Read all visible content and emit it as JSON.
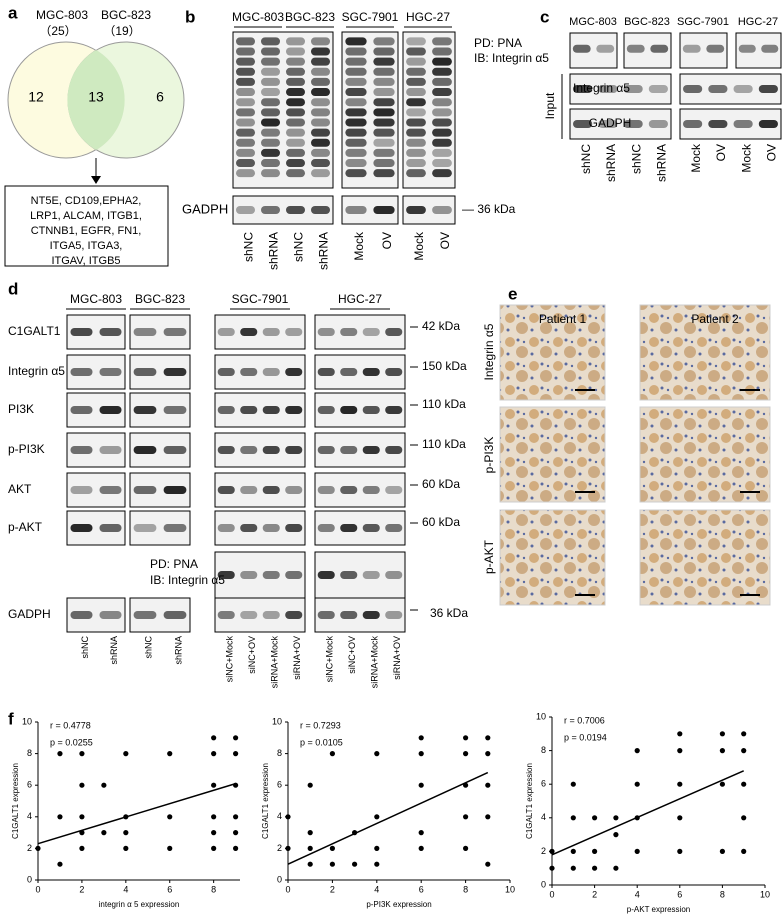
{
  "panel_a": {
    "label": "a",
    "set1": "MGC-803",
    "set1_count": "（25）",
    "set2": "BGC-823",
    "set2_count": "（19）",
    "only1": 12,
    "both": 13,
    "only2": 6,
    "genes": [
      "NT5E, CD109,EPHA2,",
      "LRP1, ALCAM, ITGB1,",
      "CTNNB1, EGFR, FN1,",
      "ITGA5, ITGA3,",
      "ITGAV, ITGB5"
    ]
  },
  "panel_b": {
    "label": "b",
    "groups": [
      "MGC-803",
      "BGC-823",
      "SGC-7901",
      "HGC-27"
    ],
    "loading": "GADPH",
    "marker": "— 36 kDa",
    "lanes": [
      "shNC",
      "shRNA",
      "shNC",
      "shRNA",
      "Mock",
      "OV",
      "Mock",
      "OV"
    ]
  },
  "panel_c": {
    "label": "c",
    "groups": [
      "MGC-803",
      "BGC-823",
      "SGC-7901",
      "HGC-27"
    ],
    "pd": "PD: PNA",
    "ib": "IB: Integrin α5",
    "input": "Input",
    "rows": [
      "Integrin α5",
      "GADPH"
    ],
    "lanes": [
      "shNC",
      "shRNA",
      "shNC",
      "shRNA",
      "Mock",
      "OV",
      "Mock",
      "OV"
    ]
  },
  "panel_d": {
    "label": "d",
    "groups": [
      "MGC-803",
      "BGC-823",
      "SGC-7901",
      "HGC-27"
    ],
    "rows": [
      "C1GALT1",
      "Integrin α5",
      "PI3K",
      "p-PI3K",
      "AKT",
      "p-AKT"
    ],
    "markers": [
      "42 kDa",
      "150 kDa",
      "110 kDa",
      "110 kDa",
      "60 kDa",
      "60 kDa"
    ],
    "pd": "PD: PNA",
    "ib": "IB:  Integrin α5",
    "loading": "GADPH",
    "loading_marker": "36 kDa",
    "lanes": [
      "shNC",
      "shRNA",
      "shNC",
      "shRNA",
      "siNC+Mock",
      "siNC+OV",
      "siRNA+Mock",
      "siRNA+OV",
      "siNC+Mock",
      "siNC+OV",
      "siRNA+Mock",
      "siRNA+OV"
    ]
  },
  "panel_e": {
    "label": "e",
    "patients": [
      "Patient 1",
      "Patient 2"
    ],
    "rows": [
      "Integrin α5",
      "p-PI3K",
      "p-AKT"
    ]
  },
  "panel_f": {
    "label": "f"
  },
  "chart_data": [
    {
      "type": "scatter",
      "annotations": [
        "r = 0.4778",
        "p = 0.0255"
      ],
      "xlabel": "integrin α 5 expression",
      "ylabel": "C1GALT1 expression",
      "color": "#000000",
      "x": [
        0,
        1,
        1,
        1,
        2,
        2,
        2,
        2,
        2,
        3,
        3,
        4,
        4,
        4,
        4,
        6,
        6,
        6,
        8,
        8,
        8,
        8,
        8,
        8,
        9,
        9,
        9,
        9,
        9,
        9
      ],
      "values": [
        2,
        1,
        4,
        8,
        2,
        3,
        4,
        6,
        8,
        3,
        6,
        2,
        3,
        4,
        8,
        2,
        4,
        8,
        2,
        3,
        4,
        6,
        8,
        9,
        2,
        3,
        4,
        6,
        8,
        9
      ],
      "trendline": {
        "x": [
          0,
          9
        ],
        "values": [
          2.3,
          6.1
        ]
      },
      "xlim": [
        0,
        9.2
      ],
      "ylim": [
        0,
        10
      ],
      "xticks": [
        0,
        2,
        4,
        6,
        8
      ],
      "yticks": [
        0,
        2,
        4,
        6,
        8,
        10
      ]
    },
    {
      "type": "scatter",
      "annotations": [
        "r = 0.7293",
        "p = 0.0105"
      ],
      "xlabel": "p-PI3K  expression",
      "ylabel": "C1GALT1 expression",
      "color": "#000000",
      "x": [
        0,
        0,
        1,
        1,
        1,
        1,
        2,
        2,
        2,
        3,
        3,
        4,
        4,
        4,
        4,
        6,
        6,
        6,
        6,
        6,
        8,
        8,
        8,
        8,
        8,
        9,
        9,
        9,
        9,
        9
      ],
      "values": [
        2,
        4,
        1,
        2,
        3,
        6,
        1,
        2,
        8,
        1,
        3,
        1,
        2,
        4,
        8,
        2,
        3,
        6,
        8,
        9,
        2,
        4,
        6,
        8,
        9,
        1,
        4,
        6,
        8,
        9
      ],
      "trendline": {
        "x": [
          0,
          9
        ],
        "values": [
          1.0,
          6.8
        ]
      },
      "xlim": [
        0,
        10
      ],
      "ylim": [
        0,
        10
      ],
      "xticks": [
        0,
        2,
        4,
        6,
        8,
        10
      ],
      "yticks": [
        0,
        2,
        4,
        6,
        8,
        10
      ]
    },
    {
      "type": "scatter",
      "annotations": [
        "r = 0.7006",
        "p = 0.0194"
      ],
      "xlabel": "p-AKT  expression",
      "ylabel": "C1GALT1 expression",
      "color": "#000000",
      "x": [
        0,
        0,
        1,
        1,
        1,
        1,
        2,
        2,
        2,
        3,
        3,
        3,
        4,
        4,
        4,
        4,
        6,
        6,
        6,
        6,
        6,
        8,
        8,
        8,
        8,
        9,
        9,
        9,
        9,
        9
      ],
      "values": [
        1,
        2,
        1,
        2,
        4,
        6,
        1,
        2,
        4,
        1,
        3,
        4,
        2,
        4,
        6,
        8,
        2,
        4,
        6,
        8,
        9,
        2,
        6,
        8,
        9,
        2,
        4,
        6,
        8,
        9
      ],
      "trendline": {
        "x": [
          0,
          9
        ],
        "values": [
          1.8,
          6.8
        ]
      },
      "xlim": [
        0,
        10
      ],
      "ylim": [
        0,
        10
      ],
      "xticks": [
        0,
        2,
        4,
        6,
        8,
        10
      ],
      "yticks": [
        0,
        2,
        4,
        6,
        8,
        10
      ]
    }
  ]
}
